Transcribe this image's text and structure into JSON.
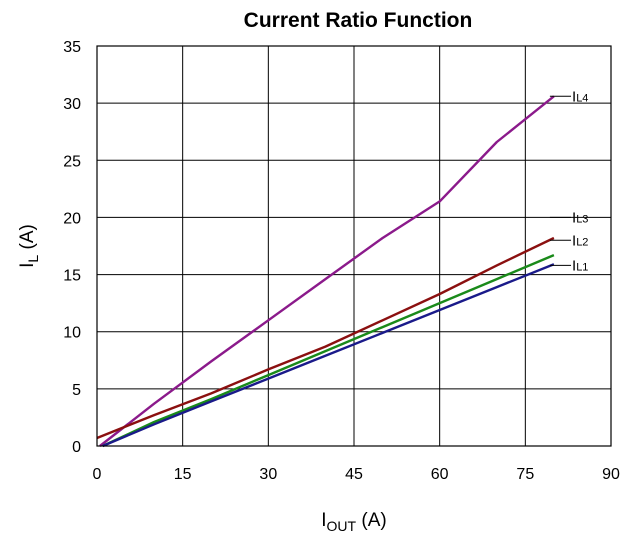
{
  "chart_data": {
    "type": "line",
    "title": "Current Ratio Function",
    "xlabel": {
      "main": "I",
      "sub": "OUT",
      "rest": " (A)"
    },
    "ylabel": {
      "main": "I",
      "sub": "L",
      "rest": " (A)"
    },
    "xlim": [
      0,
      90
    ],
    "ylim": [
      0,
      35
    ],
    "xticks": [
      0,
      15,
      30,
      45,
      60,
      75,
      90
    ],
    "yticks": [
      0,
      5,
      10,
      15,
      20,
      25,
      30,
      35
    ],
    "grid": true,
    "series": [
      {
        "id": "IL4",
        "label_main": "I",
        "label_sub": "L4",
        "color": "#8B1A8B",
        "x": [
          0.5,
          10,
          20,
          30,
          40,
          50,
          60,
          70,
          80
        ],
        "y": [
          0,
          3.7,
          7.4,
          11.0,
          14.6,
          18.2,
          21.4,
          26.6,
          30.6
        ]
      },
      {
        "id": "IL3",
        "label_main": "I",
        "label_sub": "L3",
        "color": "#8B1010",
        "x": [
          0,
          10,
          20,
          30,
          40,
          50,
          60,
          70,
          80
        ],
        "y": [
          0.7,
          2.7,
          4.6,
          6.7,
          8.7,
          11.0,
          13.3,
          15.8,
          18.2
        ]
      },
      {
        "id": "IL2",
        "label_main": "I",
        "label_sub": "L2",
        "color": "#1A8A1A",
        "x": [
          1,
          10,
          20,
          30,
          40,
          50,
          60,
          70,
          80
        ],
        "y": [
          0,
          2.1,
          4.1,
          6.2,
          8.3,
          10.4,
          12.5,
          14.6,
          16.7
        ]
      },
      {
        "id": "IL1",
        "label_main": "I",
        "label_sub": "L1",
        "color": "#1A1A8A",
        "x": [
          1,
          10,
          20,
          30,
          40,
          50,
          60,
          70,
          80
        ],
        "y": [
          0,
          1.9,
          3.9,
          5.9,
          7.9,
          9.9,
          11.9,
          13.9,
          15.9
        ]
      }
    ]
  }
}
